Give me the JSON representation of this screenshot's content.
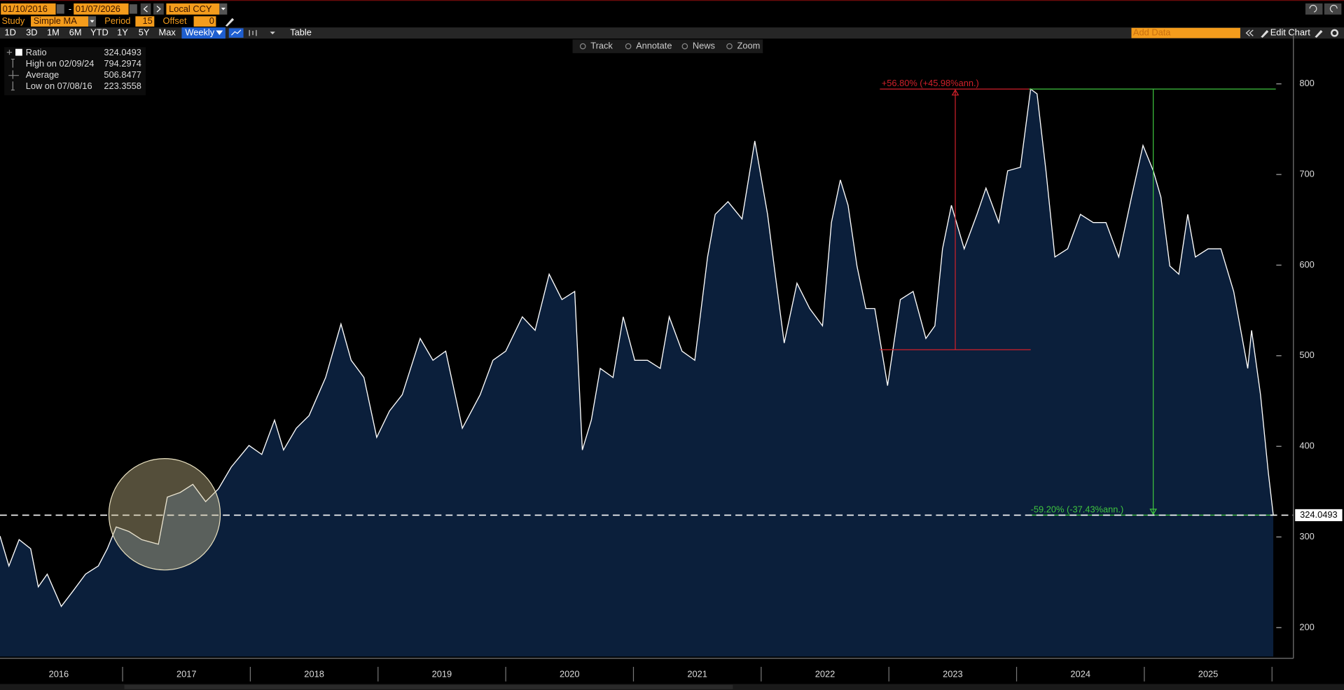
{
  "toolbar": {
    "start_date": "01/10/2016",
    "date_sep": "-",
    "end_date": "01/07/2026",
    "currency": "Local CCY",
    "study_label": "Study",
    "study": "Simple MA",
    "period_label": "Period",
    "period": "15",
    "offset_label": "Offset",
    "offset": "0",
    "ranges": [
      "1D",
      "3D",
      "1M",
      "6M",
      "YTD",
      "1Y",
      "5Y",
      "Max"
    ],
    "frequency": "Weekly",
    "table": "Table",
    "tools": [
      "Track",
      "Annotate",
      "News",
      "Zoom"
    ],
    "add_data": "Add Data",
    "edit_chart": "Edit Chart"
  },
  "stats": [
    {
      "label": "Ratio",
      "value": "324.0493"
    },
    {
      "label": "High on 02/09/24",
      "value": "794.2974"
    },
    {
      "label": "Average",
      "value": "506.8477"
    },
    {
      "label": "Low on 07/08/16",
      "value": "223.3558"
    }
  ],
  "chart_data": {
    "type": "area",
    "color": "#ffffff",
    "fill": "#0b1f3b",
    "x": [
      2016.04,
      2016.11,
      2016.19,
      2016.28,
      2016.34,
      2016.41,
      2016.52,
      2016.61,
      2016.71,
      2016.81,
      2016.88,
      2016.95,
      2017.05,
      2017.15,
      2017.28,
      2017.35,
      2017.45,
      2017.55,
      2017.65,
      2017.75,
      2017.85,
      2017.99,
      2018.09,
      2018.19,
      2018.26,
      2018.36,
      2018.46,
      2018.59,
      2018.71,
      2018.79,
      2018.89,
      2018.99,
      2019.09,
      2019.19,
      2019.33,
      2019.43,
      2019.53,
      2019.66,
      2019.8,
      2019.9,
      2020.0,
      2020.13,
      2020.23,
      2020.34,
      2020.44,
      2020.54,
      2020.6,
      2020.67,
      2020.74,
      2020.84,
      2020.92,
      2021.01,
      2021.11,
      2021.21,
      2021.28,
      2021.38,
      2021.48,
      2021.58,
      2021.64,
      2021.74,
      2021.85,
      2021.95,
      2022.05,
      2022.11,
      2022.18,
      2022.28,
      2022.38,
      2022.48,
      2022.55,
      2022.62,
      2022.68,
      2022.75,
      2022.82,
      2022.89,
      2022.99,
      2023.09,
      2023.19,
      2023.29,
      2023.36,
      2023.42,
      2023.49,
      2023.59,
      2023.69,
      2023.76,
      2023.86,
      2023.93,
      2024.03,
      2024.11,
      2024.16,
      2024.23,
      2024.3,
      2024.4,
      2024.5,
      2024.6,
      2024.7,
      2024.8,
      2024.9,
      2024.99,
      2025.07,
      2025.13,
      2025.2,
      2025.27,
      2025.34,
      2025.4,
      2025.5,
      2025.6,
      2025.7,
      2025.81,
      2025.84,
      2025.91,
      2025.97,
      2026.01
    ],
    "values": [
      301,
      268,
      297,
      287,
      245,
      259,
      223.36,
      240,
      259,
      268,
      287,
      311,
      306,
      297,
      292,
      344,
      349,
      358,
      339,
      353,
      377,
      401,
      391,
      429,
      396,
      420,
      434,
      476,
      535,
      495,
      476,
      410,
      439,
      457,
      519,
      495,
      505,
      420,
      457,
      495,
      505,
      543,
      528,
      590,
      562,
      571,
      396,
      429,
      486,
      476,
      543,
      495,
      495,
      486,
      543,
      505,
      495,
      609,
      656,
      670,
      651,
      737,
      656,
      590,
      514,
      580,
      552,
      533,
      647,
      694,
      666,
      599,
      552,
      552,
      467,
      562,
      571,
      519,
      533,
      618,
      666,
      618,
      656,
      685,
      647,
      704,
      708,
      794.3,
      789,
      704,
      609,
      618,
      656,
      647,
      647,
      609,
      675,
      732,
      704,
      675,
      599,
      590,
      656,
      609,
      618,
      618,
      571,
      486,
      528,
      457,
      372,
      324.05
    ],
    "xlim": [
      2016.04,
      2026.03
    ],
    "ylim": [
      168,
      850
    ],
    "yticks": [
      200,
      300,
      400,
      500,
      600,
      700,
      800
    ],
    "xticks": [
      {
        "value": 2016.5,
        "label": "2016"
      },
      {
        "value": 2017.5,
        "label": "2017"
      },
      {
        "value": 2018.5,
        "label": "2018"
      },
      {
        "value": 2019.5,
        "label": "2019"
      },
      {
        "value": 2020.5,
        "label": "2020"
      },
      {
        "value": 2021.5,
        "label": "2021"
      },
      {
        "value": 2022.5,
        "label": "2022"
      },
      {
        "value": 2023.5,
        "label": "2023"
      },
      {
        "value": 2024.5,
        "label": "2024"
      },
      {
        "value": 2025.5,
        "label": "2025"
      }
    ],
    "last_value_line": true,
    "measures": [
      {
        "label": "+56.80% (+45.98%ann.)",
        "x": 2023.52,
        "from": 506.6,
        "to": 794.3,
        "color": "#d0202a"
      },
      {
        "label": "-59.20% (-37.43%ann.)",
        "x": 2025.07,
        "from": 794.3,
        "to": 324.05,
        "color": "#3fc43f"
      }
    ]
  }
}
